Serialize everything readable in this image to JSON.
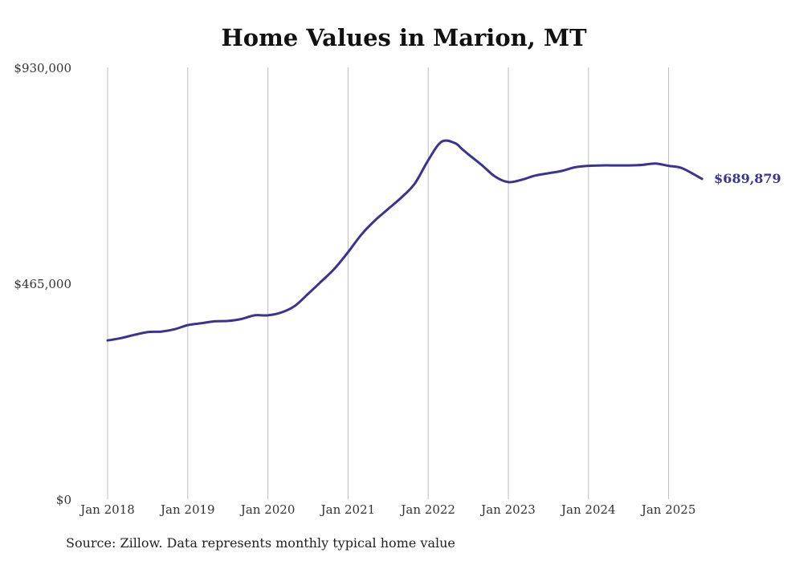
{
  "chart_data": {
    "type": "line",
    "title": "Home Values in Marion, MT",
    "source": "Source: Zillow. Data represents monthly typical home value",
    "ylim": [
      0,
      930000
    ],
    "y_ticks": [
      {
        "value": 0,
        "label": "$0"
      },
      {
        "value": 465000,
        "label": "$465,000"
      },
      {
        "value": 930000,
        "label": "$930,000"
      }
    ],
    "x_ticks": [
      "Jan 2018",
      "Jan 2019",
      "Jan 2020",
      "Jan 2021",
      "Jan 2022",
      "Jan 2023",
      "Jan 2024",
      "Jan 2025"
    ],
    "grid": "vertical",
    "color": "#3b3391",
    "end_label": "$689,879",
    "series": [
      {
        "x": [
          "2018-01",
          "2018-03",
          "2018-05",
          "2018-07",
          "2018-09",
          "2018-11",
          "2019-01",
          "2019-03",
          "2019-05",
          "2019-07",
          "2019-09",
          "2019-11",
          "2020-01",
          "2020-03",
          "2020-05",
          "2020-07",
          "2020-09",
          "2020-11",
          "2021-01",
          "2021-03",
          "2021-05",
          "2021-07",
          "2021-09",
          "2021-11",
          "2022-01",
          "2022-03",
          "2022-05",
          "2022-06",
          "2022-07",
          "2022-09",
          "2022-11",
          "2023-01",
          "2023-03",
          "2023-05",
          "2023-07",
          "2023-09",
          "2023-11",
          "2024-01",
          "2024-03",
          "2024-05",
          "2024-07",
          "2024-09",
          "2024-11",
          "2025-01",
          "2025-03",
          "2025-06"
        ],
        "values": [
          342000,
          347000,
          354000,
          360000,
          361000,
          366000,
          375000,
          379000,
          383000,
          384000,
          388000,
          396000,
          396000,
          402000,
          416000,
          442000,
          469000,
          497000,
          532000,
          570000,
          600000,
          625000,
          650000,
          680000,
          730000,
          770000,
          767000,
          755000,
          743000,
          720000,
          695000,
          683000,
          688000,
          697000,
          702000,
          707000,
          715000,
          718000,
          719000,
          719000,
          719000,
          720000,
          723000,
          718000,
          713000,
          689879
        ]
      }
    ]
  }
}
